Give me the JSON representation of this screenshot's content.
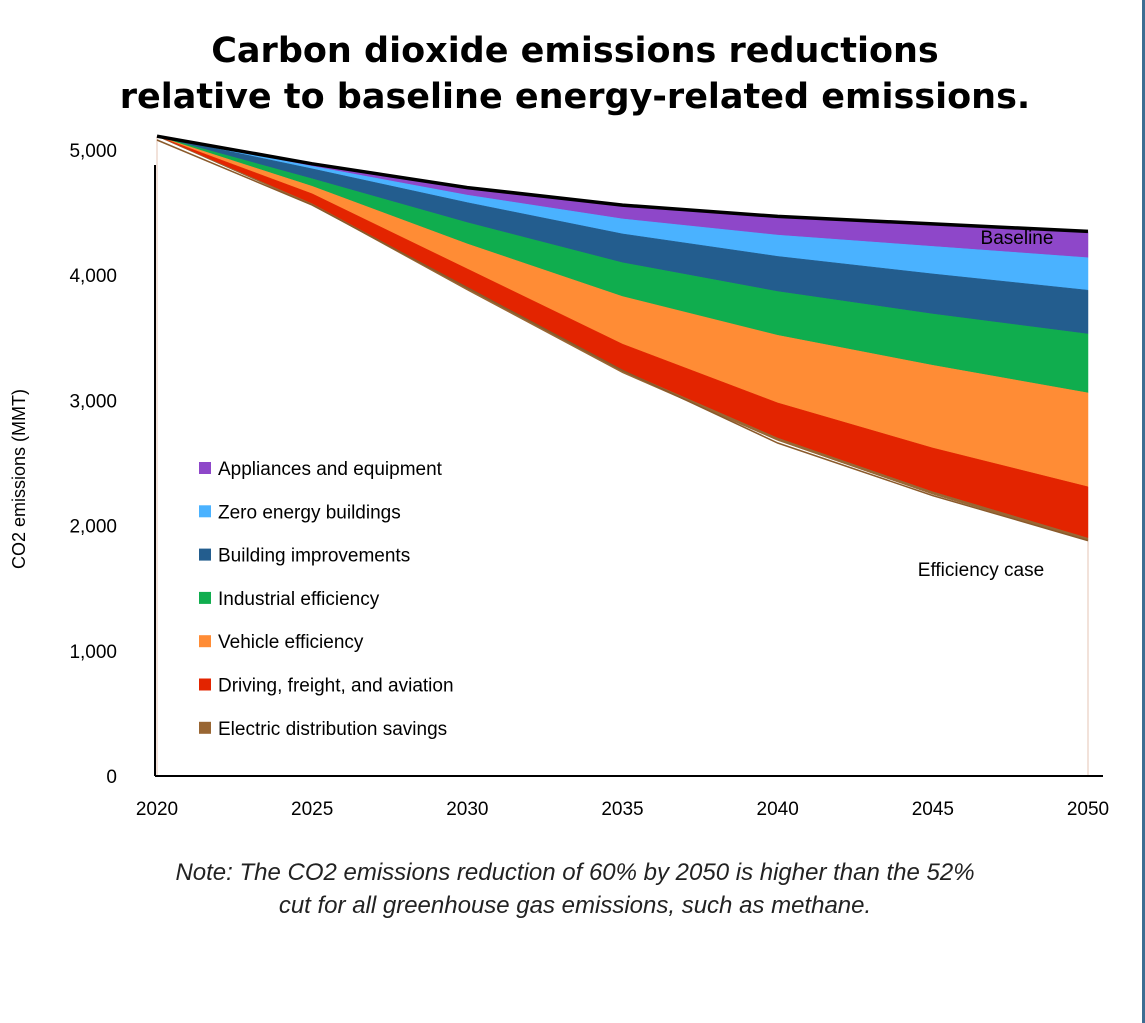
{
  "title": {
    "line1": "Carbon dioxide emissions reductions",
    "line2": "relative to baseline energy-related emissions."
  },
  "note": {
    "line1": "Note: The CO2 emissions reduction of 60% by 2050 is higher than the 52%",
    "line2": "cut for all greenhouse gas emissions, such as methane."
  },
  "chart_data": {
    "type": "area",
    "title": "Carbon dioxide emissions reductions relative to baseline energy-related emissions.",
    "xlabel": "",
    "ylabel": "CO2 emissions (MMT)",
    "xlim": [
      2020,
      2050
    ],
    "ylim": [
      0,
      5000
    ],
    "x_ticks": [
      "2020",
      "2025",
      "2030",
      "2035",
      "2040",
      "2045",
      "2050"
    ],
    "y_ticks": [
      "0",
      "1,000",
      "2,000",
      "3,000",
      "4,000",
      "5,000"
    ],
    "x": [
      2020,
      2025,
      2030,
      2035,
      2040,
      2045,
      2050
    ],
    "baseline": {
      "name": "Baseline",
      "values": [
        5110,
        4890,
        4700,
        4560,
        4470,
        4410,
        4350
      ]
    },
    "efficiency_case": {
      "name": "Efficiency case",
      "values": [
        5080,
        4560,
        3900,
        3240,
        2660,
        2240,
        1880
      ]
    },
    "series": [
      {
        "name": "Appliances and equipment",
        "color": "#8e47c9",
        "values": [
          0,
          20,
          60,
          110,
          150,
          180,
          210
        ]
      },
      {
        "name": "Zero energy buildings",
        "color": "#4ab2ff",
        "values": [
          0,
          20,
          60,
          120,
          170,
          220,
          260
        ]
      },
      {
        "name": "Building improvements",
        "color": "#235d8e",
        "values": [
          0,
          80,
          160,
          230,
          280,
          320,
          350
        ]
      },
      {
        "name": "Industrial efficiency",
        "color": "#10ad4e",
        "values": [
          0,
          60,
          170,
          270,
          350,
          410,
          470
        ]
      },
      {
        "name": "Vehicle efficiency",
        "color": "#ff8c35",
        "values": [
          0,
          60,
          200,
          380,
          540,
          660,
          750
        ]
      },
      {
        "name": "Driving, freight, and aviation",
        "color": "#e32400",
        "values": [
          0,
          80,
          150,
          210,
          280,
          350,
          410
        ]
      },
      {
        "name": "Electric distribution savings",
        "color": "#996633",
        "values": [
          0,
          10,
          20,
          20,
          20,
          20,
          20
        ]
      }
    ],
    "legend_position": "left",
    "grid": false
  }
}
